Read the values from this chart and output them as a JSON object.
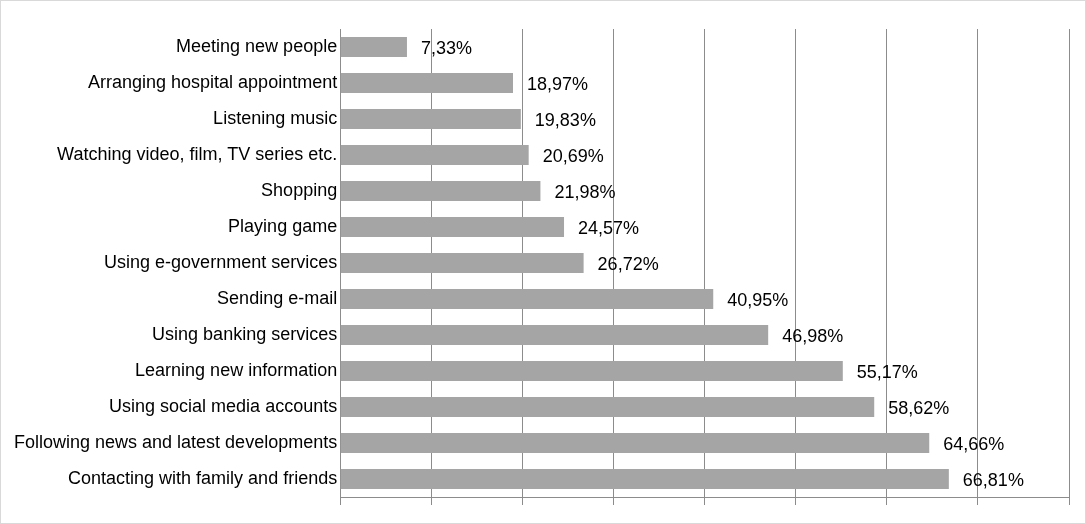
{
  "chart_data": {
    "type": "bar",
    "orientation": "horizontal",
    "categories": [
      "Meeting new people",
      "Arranging hospital appointment",
      "Listening music",
      "Watching video, film, TV series etc.",
      "Shopping",
      "Playing game",
      "Using e-government services",
      "Sending e-mail",
      "Using banking services",
      "Learning new information",
      "Using social media accounts",
      "Following news and latest developments",
      "Contacting with family and friends"
    ],
    "values": [
      7.33,
      18.97,
      19.83,
      20.69,
      21.98,
      24.57,
      26.72,
      40.95,
      46.98,
      55.17,
      58.62,
      64.66,
      66.81
    ],
    "value_labels": [
      "7,33%",
      "18,97%",
      "19,83%",
      "20,69%",
      "21,98%",
      "24,57%",
      "26,72%",
      "40,95%",
      "46,98%",
      "55,17%",
      "58,62%",
      "64,66%",
      "66,81%"
    ],
    "color": "#a5a5a5",
    "xlim": [
      0,
      80
    ],
    "xticks": [
      {
        "value": 0,
        "label": null
      },
      {
        "value": 10,
        "label": null
      },
      {
        "value": 20,
        "label": null
      },
      {
        "value": 30,
        "label": null
      },
      {
        "value": 40,
        "label": null
      },
      {
        "value": 50,
        "label": null
      },
      {
        "value": 60,
        "label": null
      },
      {
        "value": 70,
        "label": null
      },
      {
        "value": 80,
        "label": null
      }
    ],
    "tick_labels": "y",
    "grid": "x"
  }
}
